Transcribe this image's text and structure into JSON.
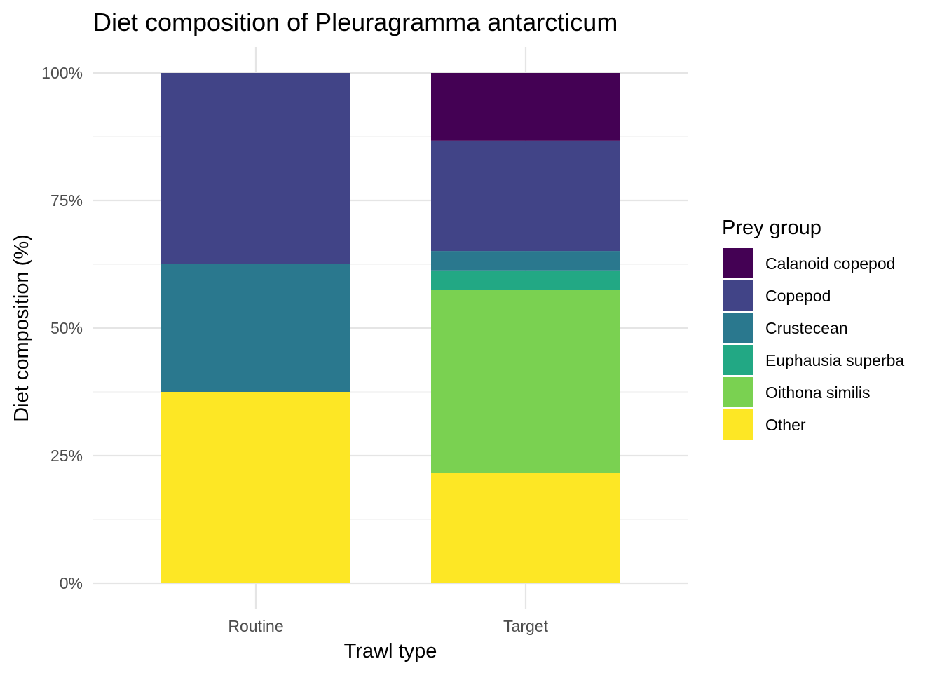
{
  "chart_data": {
    "type": "bar",
    "stacked": true,
    "percent": true,
    "title": "Diet composition of Pleuragramma antarcticum",
    "xlabel": "Trawl type",
    "ylabel": "Diet composition (%)",
    "categories": [
      "Routine",
      "Target"
    ],
    "ylim": [
      0,
      100
    ],
    "yticks": [
      0,
      25,
      50,
      75,
      100
    ],
    "ytick_labels": [
      "0%",
      "25%",
      "50%",
      "75%",
      "100%"
    ],
    "grid": true,
    "legend": {
      "title": "Prey group",
      "placement": "right"
    },
    "series": [
      {
        "name": "Calanoid copepod",
        "color": "#440154",
        "values": [
          0,
          13.3
        ]
      },
      {
        "name": "Copepod",
        "color": "#414487",
        "values": [
          37.5,
          21.6
        ]
      },
      {
        "name": "Crustecean",
        "color": "#2A788E",
        "values": [
          25.0,
          3.8
        ]
      },
      {
        "name": "Euphausia superba",
        "color": "#22A884",
        "values": [
          0,
          3.8
        ]
      },
      {
        "name": "Oithona similis",
        "color": "#7AD151",
        "values": [
          0,
          35.9
        ]
      },
      {
        "name": "Other",
        "color": "#FDE725",
        "values": [
          37.5,
          21.6
        ]
      }
    ]
  }
}
